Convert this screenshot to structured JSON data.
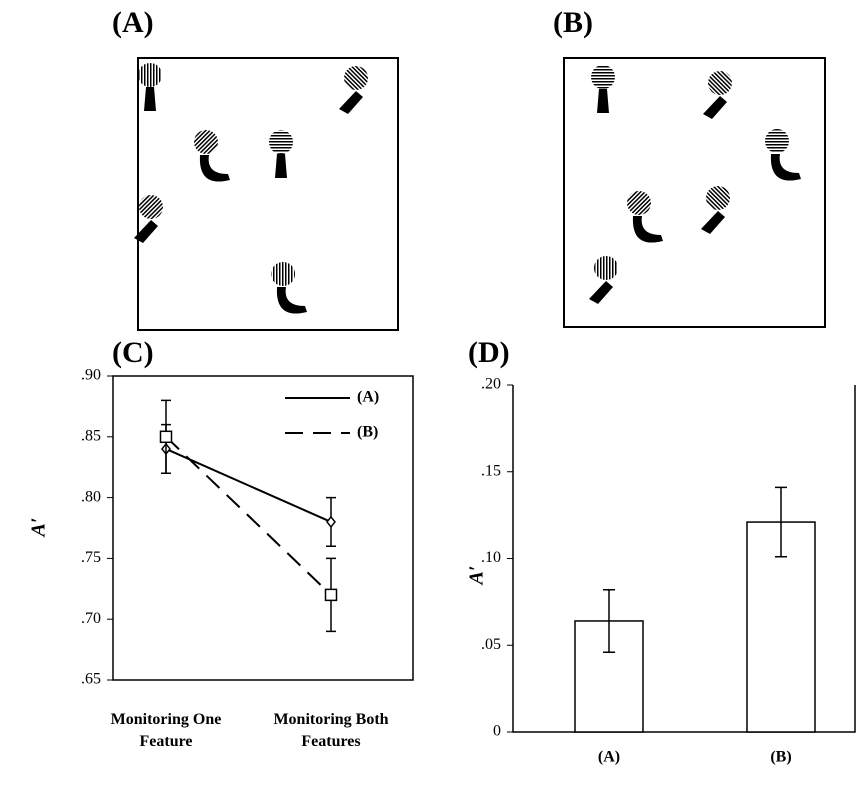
{
  "panels": {
    "left_label": "(A)",
    "right_label": "(B)"
  },
  "chart_data": [
    {
      "type": "line",
      "title": "(C)",
      "ylabel": "A′",
      "categories": [
        "Monitoring One Feature",
        "Monitoring Both Features"
      ],
      "series": [
        {
          "name": "(A)",
          "color": "#000000",
          "line_style": "solid",
          "marker": "diamond",
          "values": [
            0.84,
            0.78
          ],
          "errors": [
            0.02,
            0.02
          ]
        },
        {
          "name": "(B)",
          "color": "#000000",
          "line_style": "dashed",
          "marker": "square",
          "values": [
            0.85,
            0.72
          ],
          "errors": [
            0.03,
            0.03
          ]
        }
      ],
      "ylim": [
        0.65,
        0.9
      ],
      "yticks": [
        {
          "value": 0.65,
          "label": ".65"
        },
        {
          "value": 0.7,
          "label": ".70"
        },
        {
          "value": 0.75,
          "label": ".75"
        },
        {
          "value": 0.8,
          "label": ".80"
        },
        {
          "value": 0.85,
          "label": ".85"
        },
        {
          "value": 0.9,
          "label": ".90"
        }
      ],
      "legend": "upper right"
    },
    {
      "type": "bar",
      "title": "(D)",
      "ylabel": "A′",
      "categories": [
        "(A)",
        "(B)"
      ],
      "values": [
        0.064,
        0.121
      ],
      "errors": [
        0.018,
        0.02
      ],
      "color": "#ffffff",
      "ylim": [
        0,
        0.2
      ],
      "yticks": [
        0,
        {
          "value": 0.05,
          "label": ".05"
        },
        {
          "value": 0.1,
          "label": ".10"
        },
        {
          "value": 0.15,
          "label": ".15"
        },
        {
          "value": 0.2,
          "label": ".20"
        }
      ]
    }
  ]
}
